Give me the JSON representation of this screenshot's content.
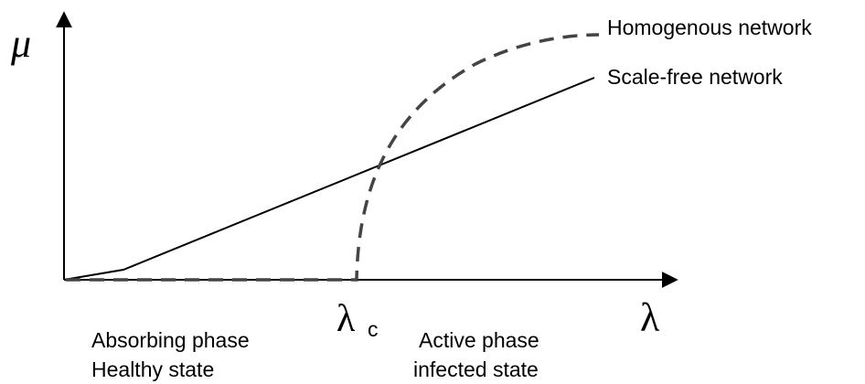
{
  "axes": {
    "y_label": "μ",
    "x_label": "λ"
  },
  "critical_point": {
    "symbol": "λ",
    "subscript": "c"
  },
  "curves": [
    {
      "label": "Homogenous network"
    },
    {
      "label": "Scale-free network"
    }
  ],
  "phases": [
    {
      "name": "Absorbing phase",
      "state": "Healthy state"
    },
    {
      "name": "Active phase",
      "state": "infected state"
    }
  ]
}
